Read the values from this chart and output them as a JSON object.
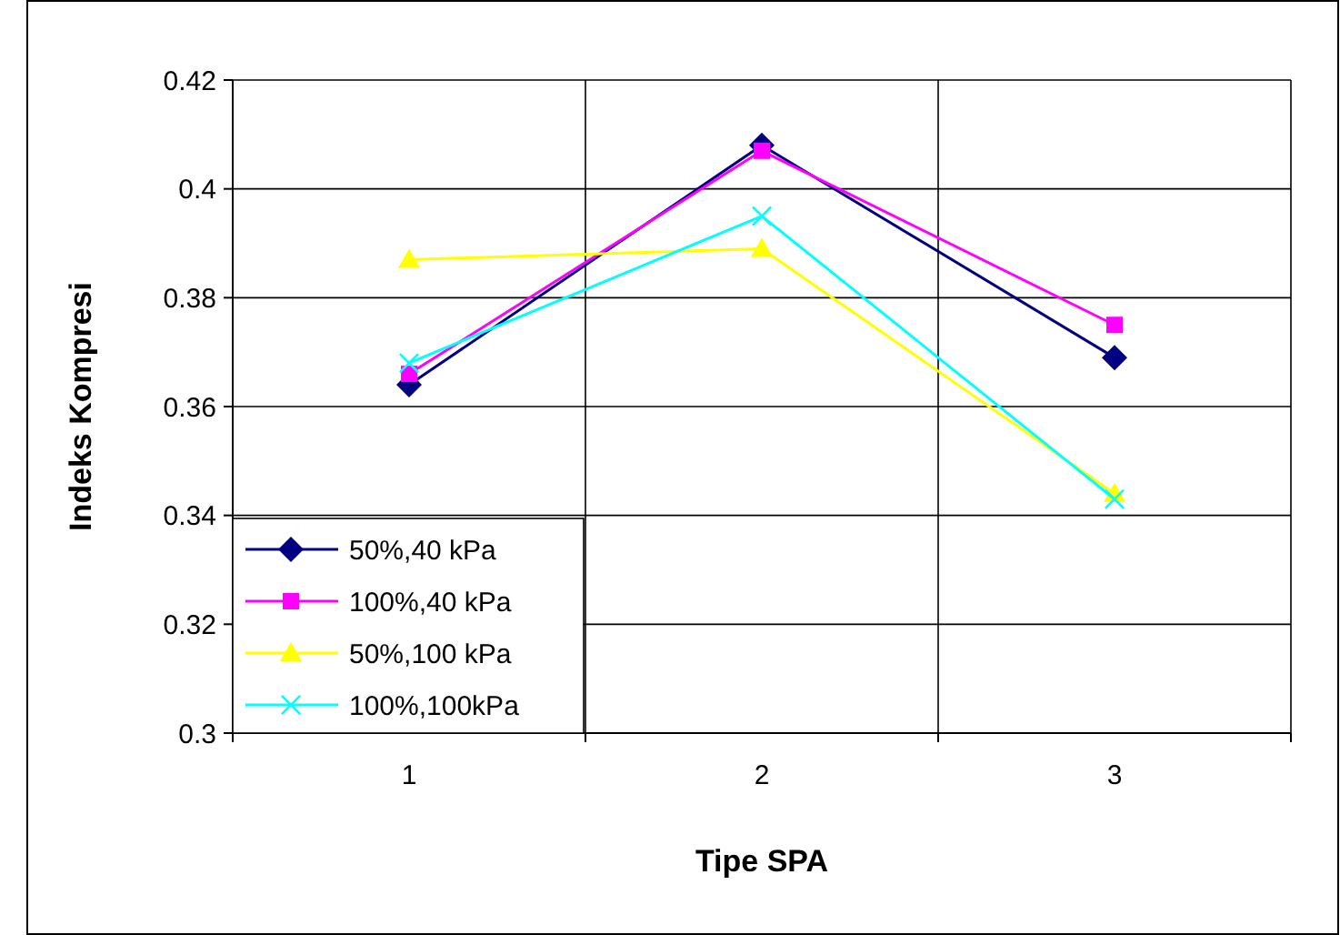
{
  "chart_data": {
    "type": "line",
    "xlabel": "Tipe SPA",
    "ylabel": "Indeks Kompresi",
    "categories": [
      "1",
      "2",
      "3"
    ],
    "series": [
      {
        "name": "50%,40 kPa",
        "color": "#000080",
        "marker": "diamond",
        "values": [
          0.364,
          0.408,
          0.369
        ]
      },
      {
        "name": "100%,40 kPa",
        "color": "#ff00ff",
        "marker": "square",
        "values": [
          0.366,
          0.407,
          0.375
        ]
      },
      {
        "name": "50%,100 kPa",
        "color": "#ffff00",
        "marker": "triangle",
        "values": [
          0.387,
          0.389,
          0.344
        ]
      },
      {
        "name": "100%,100kPa",
        "color": "#00ffff",
        "marker": "cross",
        "values": [
          0.368,
          0.395,
          0.343
        ]
      }
    ],
    "ylim": [
      0.3,
      0.42
    ],
    "yticks": [
      0.3,
      0.32,
      0.34,
      0.36,
      0.38,
      0.4,
      0.42
    ],
    "grid": true,
    "legend": "bottom left"
  }
}
